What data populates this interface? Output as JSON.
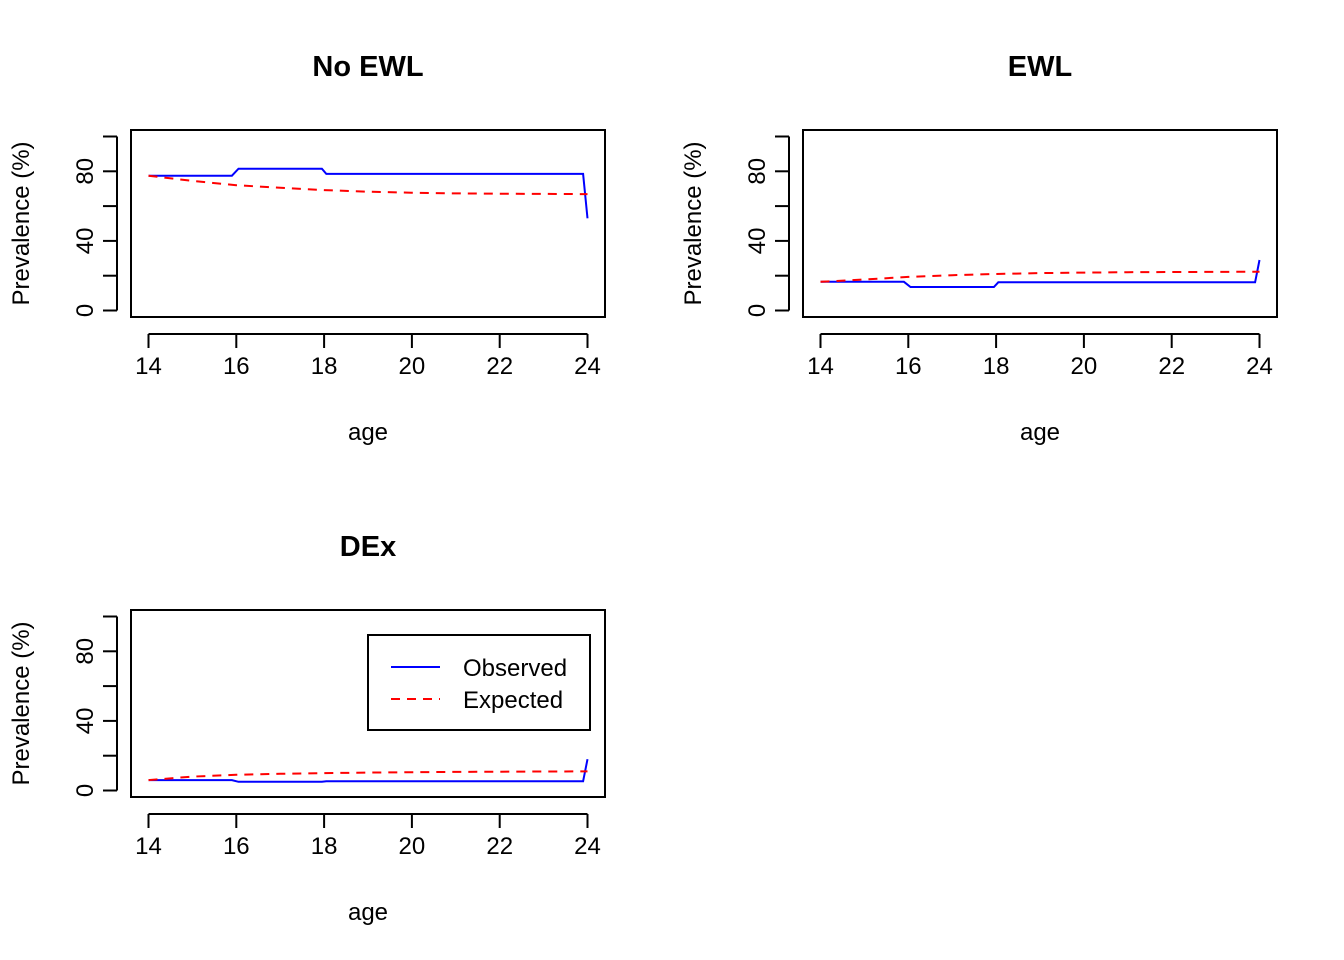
{
  "chart_data": [
    {
      "type": "line",
      "title": "No EWL",
      "xlabel": "age",
      "ylabel": "Prevalence (%)",
      "xlim": [
        14,
        24
      ],
      "ylim": [
        0,
        100
      ],
      "x_ticks": [
        "14",
        "16",
        "18",
        "20",
        "22",
        "24"
      ],
      "y_ticks": [
        "0",
        "40",
        "80"
      ],
      "series": [
        {
          "name": "Observed",
          "color": "#0000ff",
          "style": "solid",
          "points": [
            [
              14,
              77.5
            ],
            [
              15.9,
              77.5
            ],
            [
              16.05,
              81.5
            ],
            [
              17.95,
              81.5
            ],
            [
              18.05,
              78.5
            ],
            [
              23.9,
              78.5
            ],
            [
              24,
              53
            ]
          ]
        },
        {
          "name": "Expected",
          "color": "#ff0000",
          "style": "dashed",
          "points": [
            [
              14,
              77.5
            ],
            [
              15,
              74.5
            ],
            [
              16,
              72
            ],
            [
              17,
              70.5
            ],
            [
              18,
              69.2
            ],
            [
              19,
              68.3
            ],
            [
              20,
              67.7
            ],
            [
              21,
              67.3
            ],
            [
              22,
              67.1
            ],
            [
              23,
              67
            ],
            [
              24,
              66.9
            ]
          ]
        }
      ]
    },
    {
      "type": "line",
      "title": "EWL",
      "xlabel": "age",
      "ylabel": "Prevalence (%)",
      "xlim": [
        14,
        24
      ],
      "ylim": [
        0,
        100
      ],
      "x_ticks": [
        "14",
        "16",
        "18",
        "20",
        "22",
        "24"
      ],
      "y_ticks": [
        "0",
        "40",
        "80"
      ],
      "series": [
        {
          "name": "Observed",
          "color": "#0000ff",
          "style": "solid",
          "points": [
            [
              14,
              16.5
            ],
            [
              15.9,
              16.5
            ],
            [
              16.05,
              13.5
            ],
            [
              17.95,
              13.5
            ],
            [
              18.05,
              16.2
            ],
            [
              23.9,
              16.2
            ],
            [
              24,
              29
            ]
          ]
        },
        {
          "name": "Expected",
          "color": "#ff0000",
          "style": "dashed",
          "points": [
            [
              14,
              16.5
            ],
            [
              15,
              17.8
            ],
            [
              16,
              19.3
            ],
            [
              17,
              20.3
            ],
            [
              18,
              21
            ],
            [
              19,
              21.5
            ],
            [
              20,
              21.8
            ],
            [
              21,
              22
            ],
            [
              22,
              22.1
            ],
            [
              23,
              22.2
            ],
            [
              24,
              22.3
            ]
          ]
        }
      ]
    },
    {
      "type": "line",
      "title": "DEx",
      "xlabel": "age",
      "ylabel": "Prevalence (%)",
      "xlim": [
        14,
        24
      ],
      "ylim": [
        0,
        100
      ],
      "x_ticks": [
        "14",
        "16",
        "18",
        "20",
        "22",
        "24"
      ],
      "y_ticks": [
        "0",
        "40",
        "80"
      ],
      "legend": {
        "position": "top-right",
        "entries": [
          {
            "label": "Observed",
            "color": "#0000ff",
            "style": "solid"
          },
          {
            "label": "Expected",
            "color": "#ff0000",
            "style": "dashed"
          }
        ]
      },
      "series": [
        {
          "name": "Observed",
          "color": "#0000ff",
          "style": "solid",
          "points": [
            [
              14,
              6
            ],
            [
              15.9,
              6
            ],
            [
              16.05,
              5
            ],
            [
              17.95,
              5
            ],
            [
              18.05,
              5.3
            ],
            [
              23.9,
              5.3
            ],
            [
              24,
              18
            ]
          ]
        },
        {
          "name": "Expected",
          "color": "#ff0000",
          "style": "dashed",
          "points": [
            [
              14,
              6
            ],
            [
              15,
              8
            ],
            [
              16,
              9
            ],
            [
              17,
              9.6
            ],
            [
              18,
              10
            ],
            [
              19,
              10.3
            ],
            [
              20,
              10.5
            ],
            [
              21,
              10.7
            ],
            [
              22,
              10.8
            ],
            [
              23,
              10.9
            ],
            [
              24,
              11
            ]
          ]
        }
      ]
    }
  ]
}
